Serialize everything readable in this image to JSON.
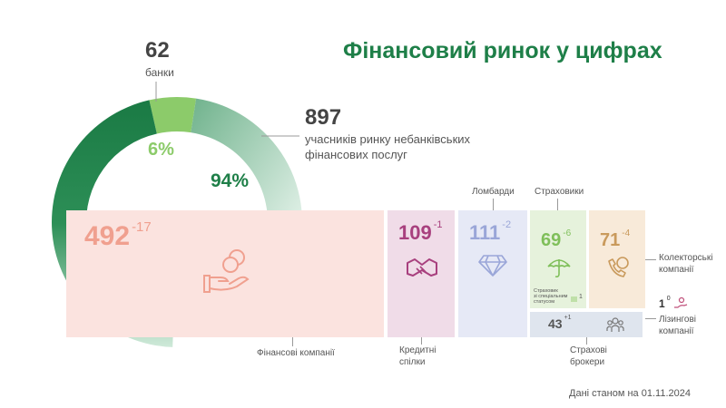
{
  "title": "Фінансовий ринок у цифрах",
  "banks": {
    "value": "62",
    "label": "банки"
  },
  "nonbank": {
    "value": "897",
    "label_line1": "учасників ринку небанківських",
    "label_line2": "фінансових послуг"
  },
  "colors": {
    "green_dark": "#1e7f48",
    "green_light": "#8ccb6a",
    "brand": "#1e7f48"
  },
  "chart_data": [
    {
      "type": "pie",
      "slices": [
        {
          "name": "банки",
          "value": 6,
          "label": "6%",
          "color": "#8ccb6a"
        },
        {
          "name": "учасників ринку небанківських фінансових послуг",
          "value": 94,
          "label": "94%",
          "color": "#1e7f48"
        }
      ]
    },
    {
      "type": "bar",
      "categories": [
        "Фінансові компанії",
        "Кредитні спілки",
        "Ломбарди",
        "Страховики",
        "Колекторські компанії",
        "Страхові брокери",
        "Лізингові компанії"
      ],
      "values": [
        492,
        109,
        111,
        69,
        71,
        43,
        1
      ],
      "changes": [
        "-17",
        "-1",
        "-2",
        "-6",
        "-4",
        "+1",
        "0"
      ]
    }
  ],
  "tiles": {
    "fin": {
      "value": "492",
      "change": "-17",
      "label": "Фінансові компанії",
      "color": "#fbe3df",
      "text_color": "#f0a08f"
    },
    "credit": {
      "value": "109",
      "change": "-1",
      "label_line1": "Кредитні",
      "label_line2": "спілки",
      "color": "#f0dce8",
      "text_color": "#a8407e"
    },
    "pawn": {
      "value": "111",
      "change": "-2",
      "label": "Ломбарди",
      "color": "#e6e9f6",
      "text_color": "#9aa6d8"
    },
    "insurers": {
      "value": "69",
      "change": "-6",
      "label": "Страховики",
      "color": "#e6f2dc",
      "text_color": "#7fbf5a",
      "special_line1": "Страховик",
      "special_line2": "зі спеціальним",
      "special_line3": "статусом",
      "special_value": "1"
    },
    "collectors": {
      "value": "71",
      "change": "-4",
      "label_line1": "Колекторські",
      "label_line2": "компанії",
      "color": "#f8ead9",
      "text_color": "#c99a5c"
    },
    "brokers": {
      "value": "43",
      "change": "+1",
      "label_line1": "Страхові",
      "label_line2": "брокери",
      "color": "#dfe5ee",
      "text_color": "#555"
    },
    "leasing": {
      "value": "1",
      "change": "0",
      "label_line1": "Лізингові",
      "label_line2": "компанії",
      "text_color": "#333"
    }
  },
  "icons": {
    "fin": "coins-hand-icon",
    "credit": "handshake-icon",
    "pawn": "diamond-icon",
    "insurers": "umbrella-icon",
    "collectors": "phone-chat-icon",
    "brokers": "people-icon",
    "leasing": "hand-person-icon",
    "special": "document-icon"
  },
  "footer": "Дані станом на 01.11.2024"
}
